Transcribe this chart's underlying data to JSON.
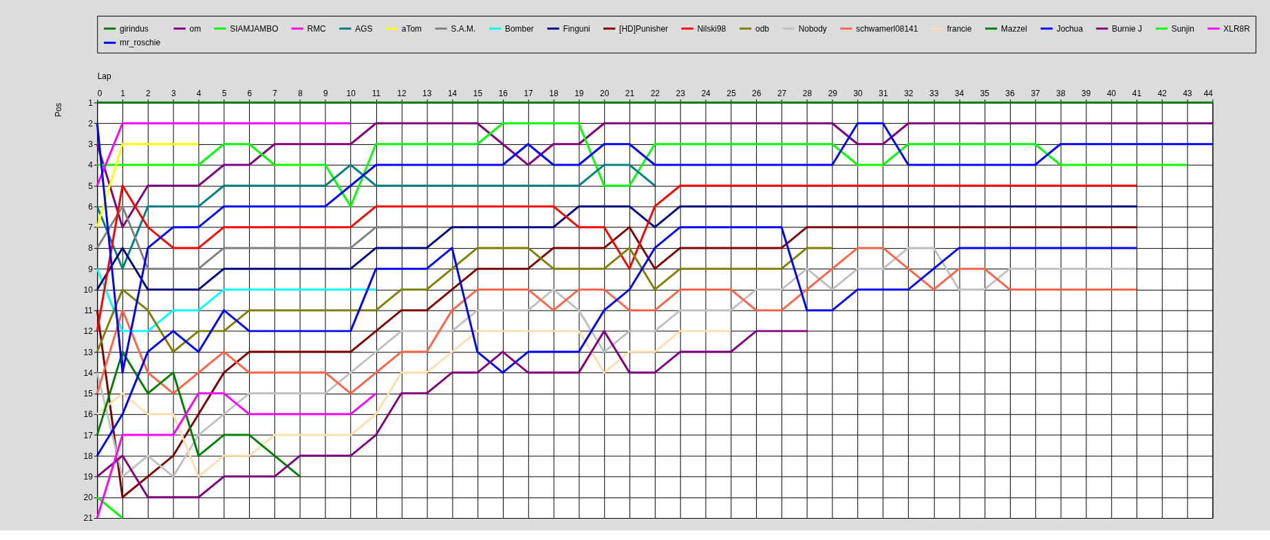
{
  "chart_data": {
    "type": "line",
    "xlabel": "Lap",
    "ylabel": "Pos",
    "legend": "top",
    "grid": true,
    "line_style": "solid",
    "marker": "none",
    "x": [
      0,
      1,
      2,
      3,
      4,
      5,
      6,
      7,
      8,
      9,
      10,
      11,
      12,
      13,
      14,
      15,
      16,
      17,
      18,
      19,
      20,
      21,
      22,
      23,
      24,
      25,
      26,
      27,
      28,
      29,
      30,
      31,
      32,
      33,
      34,
      35,
      36,
      37,
      38,
      39,
      40,
      41,
      42,
      43,
      44
    ],
    "xlim": [
      0,
      44
    ],
    "xticks": [
      0,
      1,
      2,
      3,
      4,
      5,
      6,
      7,
      8,
      9,
      10,
      11,
      12,
      13,
      14,
      15,
      16,
      17,
      18,
      19,
      20,
      21,
      22,
      23,
      24,
      25,
      26,
      27,
      28,
      29,
      30,
      31,
      32,
      33,
      34,
      35,
      36,
      37,
      38,
      39,
      40,
      41,
      42,
      43,
      44
    ],
    "ylim": [
      21,
      1
    ],
    "yticks": [
      1,
      2,
      3,
      4,
      5,
      6,
      7,
      8,
      9,
      10,
      11,
      12,
      13,
      14,
      15,
      16,
      17,
      18,
      19,
      20,
      21
    ],
    "series": [
      {
        "name": "girindus",
        "color": "#008000",
        "values": [
          1,
          1,
          1,
          1,
          1,
          1,
          1,
          1,
          1,
          1,
          1,
          1,
          1,
          1,
          1,
          1,
          1,
          1,
          1,
          1,
          1,
          1,
          1,
          1,
          1,
          1,
          1,
          1,
          1,
          1,
          1,
          1,
          1,
          1,
          1,
          1,
          1,
          1,
          1,
          1,
          1,
          1,
          1,
          1,
          1
        ]
      },
      {
        "name": "om",
        "color": "#800080",
        "values": [
          3,
          7,
          5,
          5,
          5,
          4,
          4,
          3,
          3,
          3,
          3,
          2,
          2,
          2,
          2,
          2,
          3,
          4,
          3,
          3,
          2,
          2,
          2,
          2,
          2,
          2,
          2,
          2,
          2,
          2,
          3,
          3,
          2,
          2,
          2,
          2,
          2,
          2,
          2,
          2,
          2,
          2,
          2,
          2,
          2
        ]
      },
      {
        "name": "SIAMJAMBO",
        "color": "#00ff00",
        "values": [
          4,
          4,
          4,
          4,
          4,
          3,
          3,
          4,
          4,
          4,
          6,
          3,
          3,
          3,
          3,
          3,
          2,
          2,
          2,
          2,
          5,
          5,
          3,
          3,
          3,
          3,
          3,
          3,
          3,
          3,
          4,
          4,
          3,
          3,
          3,
          3,
          3,
          3,
          4,
          4,
          4,
          4,
          4,
          4,
          null
        ]
      },
      {
        "name": "RMC",
        "color": "#ff00ff",
        "values": [
          5,
          2,
          2,
          2,
          2,
          2,
          2,
          2,
          2,
          2,
          2,
          null,
          null,
          null,
          null,
          null,
          null,
          null,
          null,
          null,
          null,
          null,
          null,
          null,
          null,
          null,
          null,
          null,
          null,
          null,
          null,
          null,
          null,
          null,
          null,
          null,
          null,
          null,
          null,
          null,
          null,
          null,
          null,
          null,
          null
        ]
      },
      {
        "name": "AGS",
        "color": "#008080",
        "values": [
          6,
          9,
          6,
          6,
          6,
          5,
          5,
          5,
          5,
          5,
          4,
          5,
          5,
          5,
          5,
          5,
          5,
          5,
          5,
          5,
          4,
          4,
          5,
          null,
          null,
          null,
          null,
          null,
          null,
          null,
          null,
          null,
          null,
          null,
          null,
          null,
          null,
          null,
          null,
          null,
          null,
          null,
          null,
          null,
          null
        ]
      },
      {
        "name": "aTom",
        "color": "#ffff00",
        "values": [
          7,
          3,
          3,
          3,
          3,
          null,
          null,
          null,
          null,
          null,
          null,
          null,
          null,
          null,
          null,
          null,
          null,
          null,
          null,
          null,
          null,
          null,
          null,
          null,
          null,
          null,
          null,
          null,
          null,
          null,
          null,
          null,
          null,
          null,
          null,
          null,
          null,
          null,
          null,
          null,
          null,
          null,
          null,
          null,
          null
        ]
      },
      {
        "name": "S.A.M.",
        "color": "#808080",
        "values": [
          8,
          6,
          9,
          9,
          9,
          8,
          8,
          8,
          8,
          8,
          8,
          7,
          7,
          7,
          null,
          null,
          null,
          null,
          null,
          null,
          null,
          null,
          null,
          null,
          null,
          null,
          null,
          null,
          null,
          null,
          null,
          null,
          null,
          null,
          null,
          null,
          null,
          null,
          null,
          null,
          null,
          null,
          null,
          null,
          null
        ]
      },
      {
        "name": "Bomber",
        "color": "#00ffff",
        "values": [
          9,
          12,
          12,
          11,
          11,
          10,
          10,
          10,
          10,
          10,
          10,
          10,
          null,
          null,
          null,
          null,
          null,
          null,
          null,
          null,
          null,
          null,
          null,
          null,
          null,
          null,
          null,
          null,
          null,
          null,
          null,
          null,
          null,
          null,
          null,
          null,
          null,
          null,
          null,
          null,
          null,
          null,
          null,
          null,
          null
        ]
      },
      {
        "name": "Finguni",
        "color": "#000080",
        "values": [
          10,
          8,
          10,
          10,
          10,
          9,
          9,
          9,
          9,
          9,
          9,
          8,
          8,
          8,
          7,
          7,
          7,
          7,
          7,
          6,
          6,
          6,
          7,
          6,
          6,
          6,
          6,
          6,
          6,
          6,
          6,
          6,
          6,
          6,
          6,
          6,
          6,
          6,
          6,
          6,
          6,
          6,
          null,
          null,
          null
        ]
      },
      {
        "name": "[HD]Punisher",
        "color": "#800000",
        "values": [
          11,
          20,
          19,
          18,
          16,
          14,
          13,
          13,
          13,
          13,
          13,
          12,
          11,
          11,
          10,
          9,
          9,
          9,
          8,
          8,
          8,
          7,
          9,
          8,
          8,
          8,
          8,
          8,
          7,
          7,
          7,
          7,
          7,
          7,
          7,
          7,
          7,
          7,
          7,
          7,
          7,
          7,
          null,
          null,
          null
        ]
      },
      {
        "name": "Nilski98",
        "color": "#ff0000",
        "values": [
          12,
          5,
          7,
          8,
          8,
          7,
          7,
          7,
          7,
          7,
          7,
          6,
          6,
          6,
          6,
          6,
          6,
          6,
          6,
          7,
          7,
          9,
          6,
          5,
          5,
          5,
          5,
          5,
          5,
          5,
          5,
          5,
          5,
          5,
          5,
          5,
          5,
          5,
          5,
          5,
          5,
          5,
          null,
          null,
          null
        ]
      },
      {
        "name": "odb",
        "color": "#808000",
        "values": [
          13,
          10,
          11,
          13,
          12,
          12,
          11,
          11,
          11,
          11,
          11,
          11,
          10,
          10,
          9,
          8,
          8,
          8,
          9,
          9,
          9,
          8,
          10,
          9,
          9,
          9,
          9,
          9,
          8,
          8,
          null,
          null,
          null,
          null,
          null,
          null,
          null,
          null,
          null,
          null,
          null,
          null,
          null,
          null,
          null
        ]
      },
      {
        "name": "Nobody",
        "color": "#c0c0c0",
        "values": [
          14,
          19,
          18,
          19,
          17,
          16,
          15,
          15,
          15,
          15,
          14,
          13,
          12,
          12,
          12,
          11,
          11,
          11,
          10,
          11,
          13,
          12,
          12,
          11,
          11,
          11,
          10,
          10,
          9,
          10,
          9,
          9,
          8,
          8,
          10,
          10,
          9,
          9,
          9,
          9,
          9,
          9,
          null,
          null,
          null
        ]
      },
      {
        "name": "schwamerl08141",
        "color": "#ff6347",
        "values": [
          15,
          11,
          14,
          15,
          14,
          13,
          14,
          14,
          14,
          14,
          15,
          14,
          13,
          13,
          11,
          10,
          10,
          10,
          11,
          10,
          10,
          11,
          11,
          10,
          10,
          10,
          11,
          11,
          10,
          9,
          8,
          8,
          9,
          10,
          9,
          9,
          10,
          10,
          10,
          10,
          10,
          10,
          null,
          null,
          null
        ]
      },
      {
        "name": "francie",
        "color": "#ffdead",
        "values": [
          16,
          15,
          16,
          16,
          19,
          18,
          18,
          17,
          17,
          17,
          17,
          16,
          14,
          14,
          13,
          12,
          12,
          12,
          12,
          12,
          14,
          13,
          13,
          12,
          12,
          12,
          null,
          null,
          null,
          null,
          null,
          null,
          null,
          null,
          null,
          null,
          null,
          null,
          null,
          null,
          null,
          null,
          null,
          null,
          null
        ]
      },
      {
        "name": "Mazzel",
        "color": "#008000",
        "values": [
          17,
          13,
          15,
          14,
          18,
          17,
          17,
          18,
          19,
          null,
          null,
          null,
          null,
          null,
          null,
          null,
          null,
          null,
          null,
          null,
          null,
          null,
          null,
          null,
          null,
          null,
          null,
          null,
          null,
          null,
          null,
          null,
          null,
          null,
          null,
          null,
          null,
          null,
          null,
          null,
          null,
          null,
          null,
          null,
          null
        ]
      },
      {
        "name": "Jochua",
        "color": "#0000ff",
        "values": [
          18,
          16,
          13,
          12,
          13,
          11,
          12,
          12,
          12,
          12,
          12,
          9,
          9,
          9,
          8,
          13,
          14,
          13,
          13,
          13,
          11,
          10,
          8,
          7,
          7,
          7,
          7,
          7,
          11,
          11,
          10,
          10,
          10,
          9,
          8,
          8,
          8,
          8,
          8,
          8,
          8,
          8,
          null,
          null,
          null
        ]
      },
      {
        "name": "Burnie J",
        "color": "#800080",
        "values": [
          19,
          18,
          20,
          20,
          20,
          19,
          19,
          19,
          18,
          18,
          18,
          17,
          15,
          15,
          14,
          14,
          13,
          14,
          14,
          14,
          12,
          14,
          14,
          13,
          13,
          13,
          12,
          12,
          12,
          null,
          null,
          null,
          null,
          null,
          null,
          null,
          null,
          null,
          null,
          null,
          null,
          null,
          null,
          null,
          null
        ]
      },
      {
        "name": "Sunjin",
        "color": "#00ff00",
        "values": [
          20,
          21,
          null,
          null,
          null,
          null,
          null,
          null,
          null,
          null,
          null,
          null,
          null,
          null,
          null,
          null,
          null,
          null,
          null,
          null,
          null,
          null,
          null,
          null,
          null,
          null,
          null,
          null,
          null,
          null,
          null,
          null,
          null,
          null,
          null,
          null,
          null,
          null,
          null,
          null,
          null,
          null,
          null,
          null,
          null
        ]
      },
      {
        "name": "XLR8R",
        "color": "#ff00ff",
        "values": [
          21,
          17,
          17,
          17,
          15,
          15,
          16,
          16,
          16,
          16,
          16,
          15,
          null,
          null,
          null,
          null,
          null,
          null,
          null,
          null,
          null,
          null,
          null,
          null,
          null,
          null,
          null,
          null,
          null,
          null,
          null,
          null,
          null,
          null,
          null,
          null,
          null,
          null,
          null,
          null,
          null,
          null,
          null,
          null,
          null
        ]
      },
      {
        "name": "mr_roschie",
        "color": "#0000ff",
        "values": [
          2,
          14,
          8,
          7,
          7,
          6,
          6,
          6,
          6,
          6,
          5,
          4,
          4,
          4,
          4,
          4,
          4,
          3,
          4,
          4,
          3,
          3,
          4,
          4,
          4,
          4,
          4,
          4,
          4,
          4,
          2,
          2,
          4,
          4,
          4,
          4,
          4,
          4,
          3,
          3,
          3,
          3,
          3,
          3,
          3
        ]
      }
    ]
  }
}
